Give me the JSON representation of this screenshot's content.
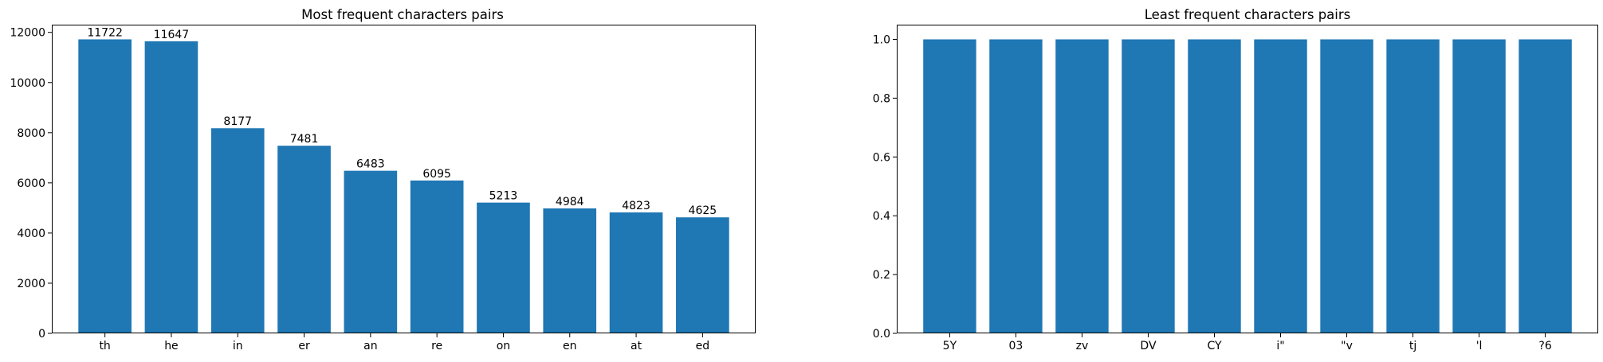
{
  "chart_data": [
    {
      "type": "bar",
      "title": "Most frequent characters pairs",
      "categories": [
        "th",
        "he",
        "in",
        "er",
        "an",
        "re",
        "on",
        "en",
        "at",
        "ed"
      ],
      "values": [
        11722,
        11647,
        8177,
        7481,
        6483,
        6095,
        5213,
        4984,
        4823,
        4625
      ],
      "show_value_labels": true,
      "xlabel": "",
      "ylabel": "",
      "ylim": [
        0,
        12308
      ],
      "yticks": [
        0,
        2000,
        4000,
        6000,
        8000,
        10000,
        12000
      ],
      "ytick_labels": [
        "0",
        "2000",
        "4000",
        "6000",
        "8000",
        "10000",
        "12000"
      ],
      "bar_color": "#1f77b4",
      "grid": false,
      "legend": false
    },
    {
      "type": "bar",
      "title": "Least frequent characters pairs",
      "categories": [
        "5Y",
        "03",
        "zv",
        "DV",
        "CY",
        "i\"",
        "\"v",
        "tj",
        "'l",
        "?6"
      ],
      "values": [
        1,
        1,
        1,
        1,
        1,
        1,
        1,
        1,
        1,
        1
      ],
      "show_value_labels": false,
      "xlabel": "",
      "ylabel": "",
      "ylim": [
        0,
        1.05
      ],
      "yticks": [
        0,
        0.2,
        0.4,
        0.6,
        0.8,
        1.0
      ],
      "ytick_labels": [
        "0.0",
        "0.2",
        "0.4",
        "0.6",
        "0.8",
        "1.0"
      ],
      "bar_color": "#1f77b4",
      "grid": false,
      "legend": false
    }
  ]
}
